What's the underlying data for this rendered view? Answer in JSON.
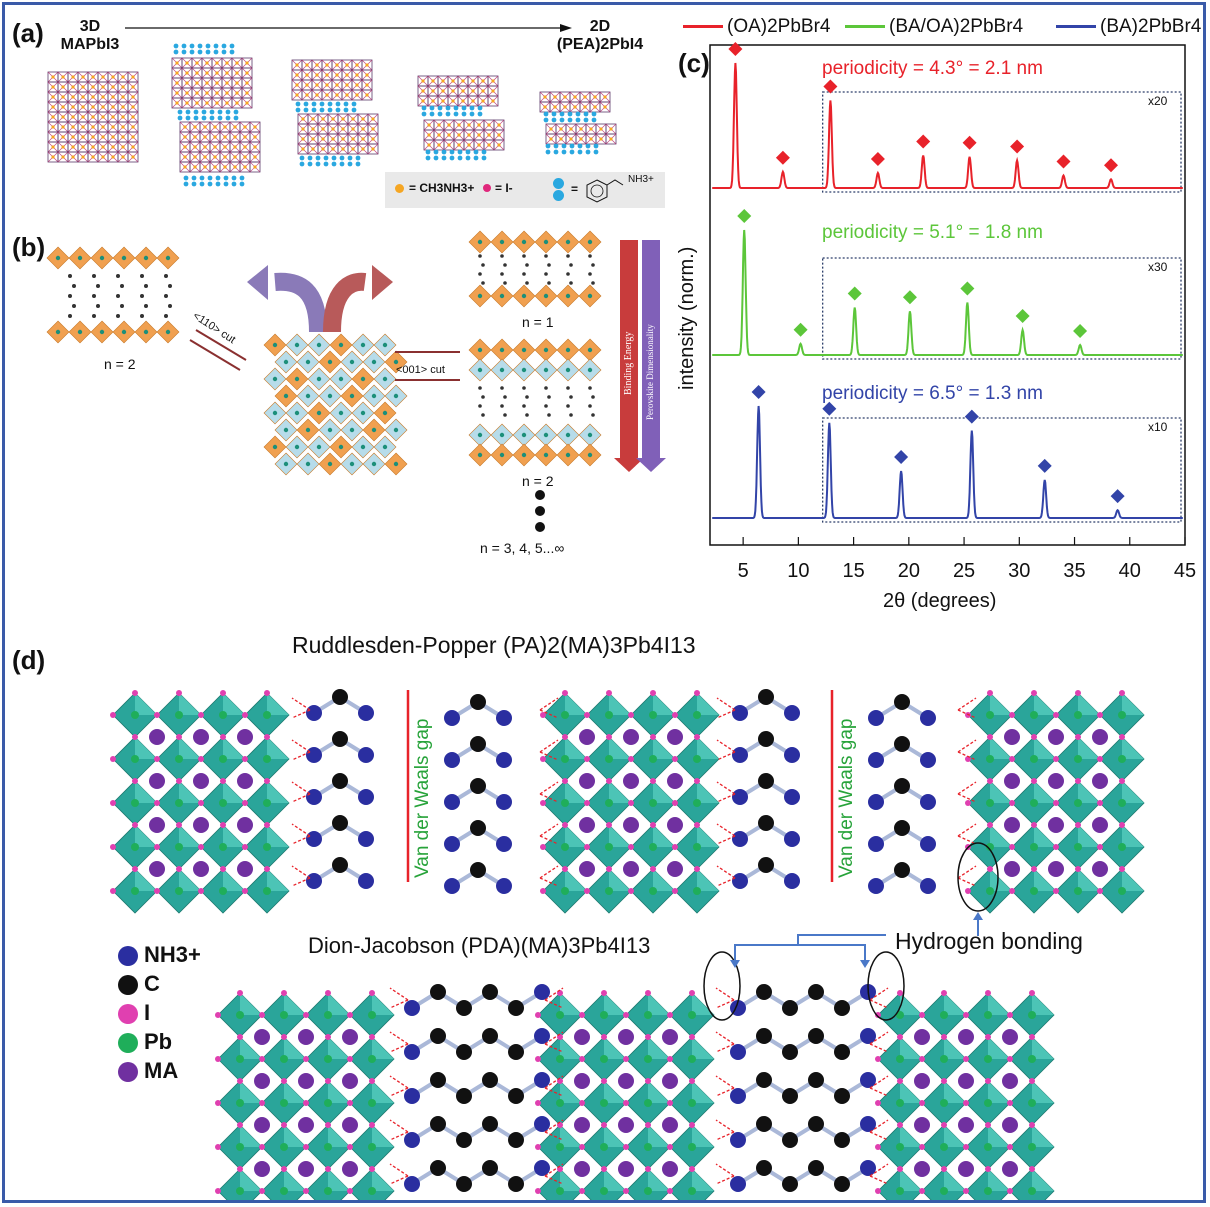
{
  "panels": {
    "a": {
      "label": "(a)",
      "left_label_line1": "3D",
      "left_label_line2": "MAPbI3",
      "right_label_line1": "2D",
      "right_label_line2": "(PEA)2PbI4",
      "key_text_1": "= CH3NH3+",
      "key_text_2": "= I-",
      "key_text_3": "=",
      "key_text_4": "NH3+"
    },
    "b": {
      "label": "(b)",
      "left_n": "n = 2",
      "cut_110": "<110> cut",
      "cut_001": "<001> cut",
      "right_n1": "n = 1",
      "right_n2": "n = 2",
      "right_more": "n = 3, 4, 5...∞",
      "bar_1": "Binding Energy",
      "bar_2": "Perovskite Dimensionality"
    },
    "c": {
      "label": "(c)",
      "legend": [
        "(OA)2PbBr4",
        "(BA/OA)2PbBr4",
        "(BA)2PbBr4"
      ],
      "periodicity": [
        "periodicity = 4.3° = 2.1 nm",
        "periodicity = 5.1° = 1.8 nm",
        "periodicity = 6.5° = 1.3 nm"
      ],
      "zoom": [
        "x20",
        "x30",
        "x10"
      ],
      "ylabel": "intensity (norm.)",
      "xlabel": "2θ (degrees)"
    },
    "d": {
      "label": "(d)",
      "title_rp": "Ruddlesden-Popper (PA)2(MA)3Pb4I13",
      "title_dj": "Dion-Jacobson (PDA)(MA)3Pb4I13",
      "vdw": "Van der Waals gap",
      "hbond": "Hydrogen bonding",
      "key": [
        "NH3+",
        "C",
        "I",
        "Pb",
        "MA"
      ]
    }
  },
  "colors": {
    "red": "#e8222a",
    "green": "#5cc63a",
    "blue": "#3244a8",
    "frame": "#3a5aa8",
    "octa": "#2aa59a",
    "orange": "#f0a050",
    "lightblue": "#9fd3e6"
  },
  "chart_data": {
    "type": "line",
    "xlabel": "2θ (degrees)",
    "ylabel": "intensity (norm.)",
    "xlim": [
      2,
      45
    ],
    "xticks": [
      5,
      10,
      15,
      20,
      25,
      30,
      35,
      40,
      45
    ],
    "series": [
      {
        "name": "(OA)2PbBr4",
        "color": "#e8222a",
        "peaks_x": [
          4.3,
          8.6,
          12.9,
          17.2,
          21.3,
          25.5,
          29.8,
          34.0,
          38.3
        ],
        "peaks_h": [
          1.0,
          0.13,
          0.7,
          0.12,
          0.26,
          0.25,
          0.22,
          0.1,
          0.07
        ]
      },
      {
        "name": "(BA/OA)2PbBr4",
        "color": "#5cc63a",
        "peaks_x": [
          5.1,
          10.2,
          15.1,
          20.1,
          25.3,
          30.3,
          35.5
        ],
        "peaks_h": [
          1.0,
          0.09,
          0.38,
          0.35,
          0.42,
          0.2,
          0.08
        ]
      },
      {
        "name": "(BA)2PbBr4",
        "color": "#3244a8",
        "peaks_x": [
          6.4,
          12.8,
          19.3,
          25.7,
          32.3,
          38.9
        ],
        "peaks_h": [
          1.0,
          0.85,
          0.42,
          0.78,
          0.34,
          0.07
        ]
      }
    ]
  }
}
